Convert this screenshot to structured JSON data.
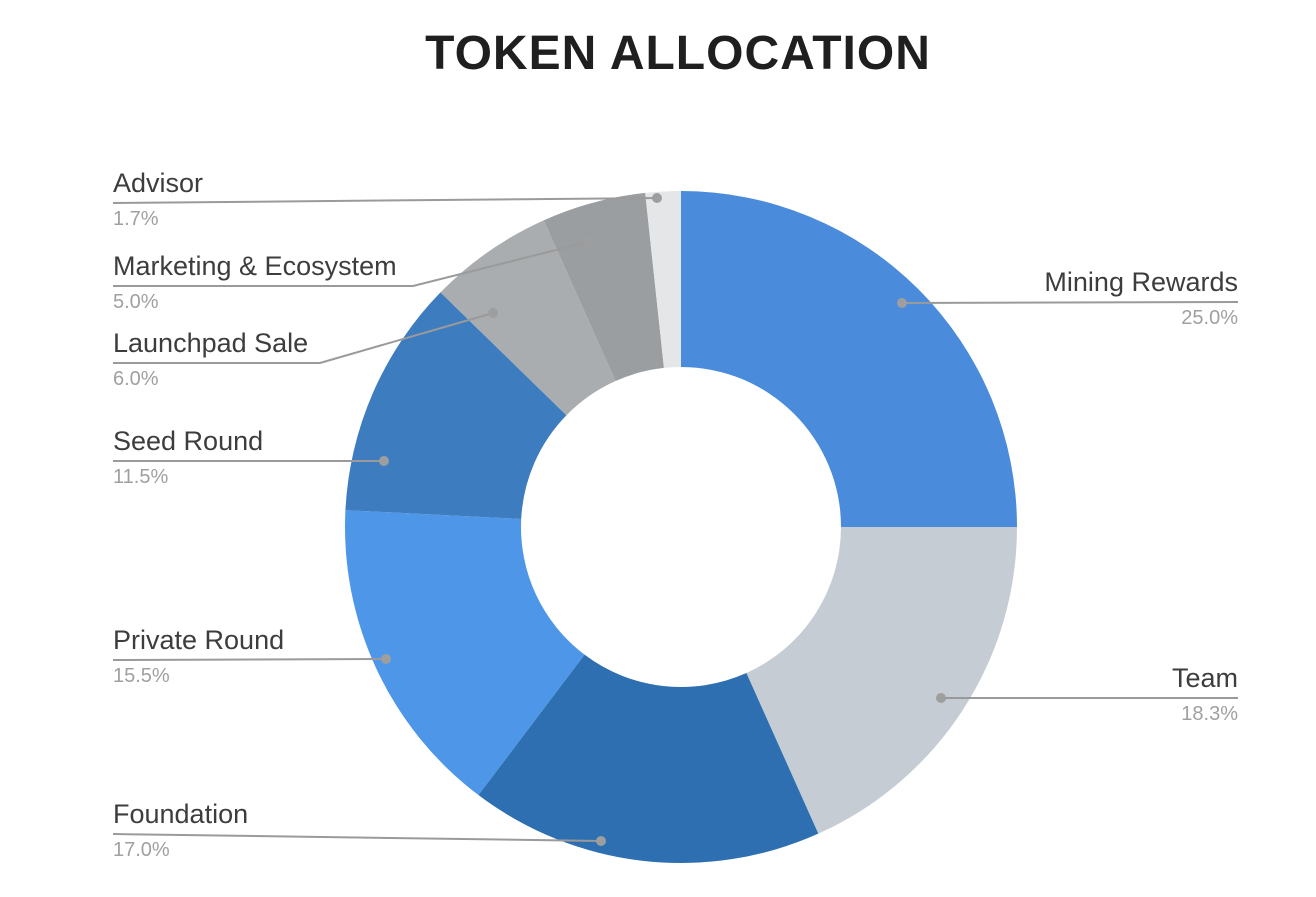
{
  "page": {
    "title": "TOKEN ALLOCATION"
  },
  "chart_data": {
    "type": "pie",
    "subtype": "donut",
    "title": "TOKEN ALLOCATION",
    "start_angle_deg": 0,
    "direction": "clockwise",
    "inner_radius_ratio": 0.48,
    "total": 100.0,
    "legend_position": "callout-labels",
    "background": "#ffffff",
    "title_color": "#1f1f1f",
    "label_color": "#3d3d3d",
    "pct_label_color": "#a0a0a0",
    "leader_line_color": "#9a9a9a",
    "leader_dot_color": "#9e9e9e",
    "slices": [
      {
        "label": "Mining Rewards",
        "value": 25.0,
        "pct_label": "25.0%",
        "color": "#4a8cdb"
      },
      {
        "label": "Team",
        "value": 18.3,
        "pct_label": "18.3%",
        "color": "#c5ccd4"
      },
      {
        "label": "Foundation",
        "value": 17.0,
        "pct_label": "17.0%",
        "color": "#2d6fb0"
      },
      {
        "label": "Private Round",
        "value": 15.5,
        "pct_label": "15.5%",
        "color": "#4e97e8"
      },
      {
        "label": "Seed Round",
        "value": 11.5,
        "pct_label": "11.5%",
        "color": "#3d7cbf"
      },
      {
        "label": "Launchpad Sale",
        "value": 6.0,
        "pct_label": "6.0%",
        "color": "#a9adaf"
      },
      {
        "label": "Marketing & Ecosystem",
        "value": 5.0,
        "pct_label": "5.0%",
        "color": "#9b9ea0"
      },
      {
        "label": "Advisor",
        "value": 1.7,
        "pct_label": "1.7%",
        "color": "#e4e6e7"
      }
    ]
  }
}
